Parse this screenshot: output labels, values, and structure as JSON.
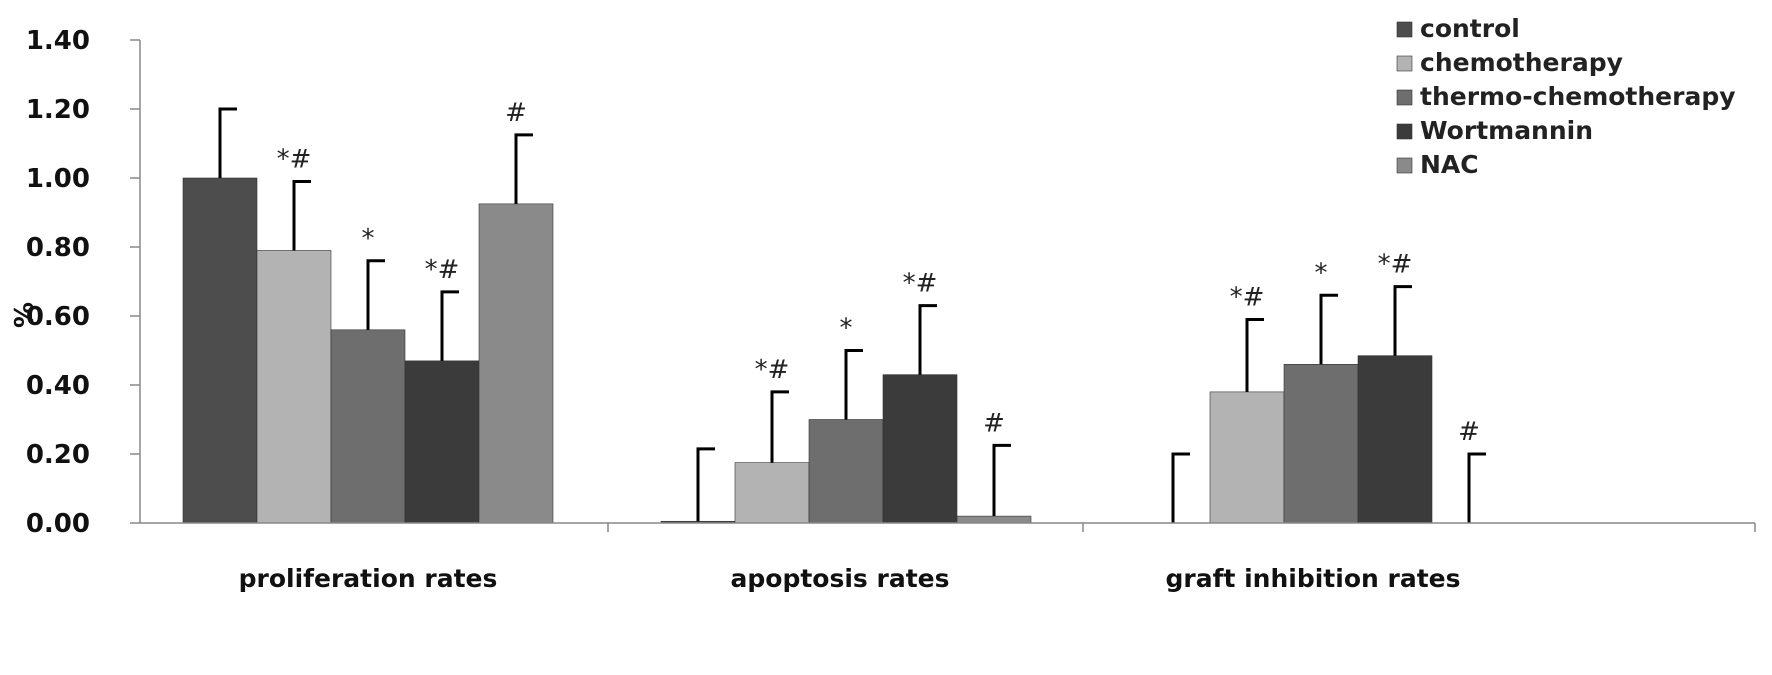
{
  "chart_data": {
    "type": "bar",
    "ylabel": "%",
    "xlabel": "",
    "ylim": [
      0,
      1.4
    ],
    "yticks": [
      "0.00",
      "0.20",
      "0.40",
      "0.60",
      "0.80",
      "1.00",
      "1.20",
      "1.40"
    ],
    "categories": [
      "proliferation rates",
      "apoptosis rates",
      "graft inhibition rates"
    ],
    "legend_position": "top-right",
    "series": [
      {
        "name": "control",
        "color": "#4d4d4d",
        "values": [
          1.0,
          0.005,
          0.0
        ],
        "errors": [
          0.2,
          0.21,
          0.2
        ],
        "annotations": [
          "",
          "",
          ""
        ]
      },
      {
        "name": "chemotherapy",
        "color": "#b3b3b3",
        "values": [
          0.79,
          0.175,
          0.38
        ],
        "errors": [
          0.2,
          0.205,
          0.21
        ],
        "annotations": [
          "*#",
          "*#",
          "*#"
        ]
      },
      {
        "name": "thermo-chemotherapy",
        "color": "#6e6e6e",
        "values": [
          0.56,
          0.3,
          0.46
        ],
        "errors": [
          0.2,
          0.2,
          0.2
        ],
        "annotations": [
          "*",
          "*",
          "*"
        ]
      },
      {
        "name": "Wortmannin",
        "color": "#3b3b3b",
        "values": [
          0.47,
          0.43,
          0.485
        ],
        "errors": [
          0.2,
          0.2,
          0.2
        ],
        "annotations": [
          "*#",
          "*#",
          "*#"
        ]
      },
      {
        "name": "NAC",
        "color": "#8a8a8a",
        "values": [
          0.925,
          0.02,
          0.0
        ],
        "errors": [
          0.2,
          0.205,
          0.2
        ],
        "annotations": [
          "#",
          "#",
          "#"
        ]
      }
    ]
  }
}
